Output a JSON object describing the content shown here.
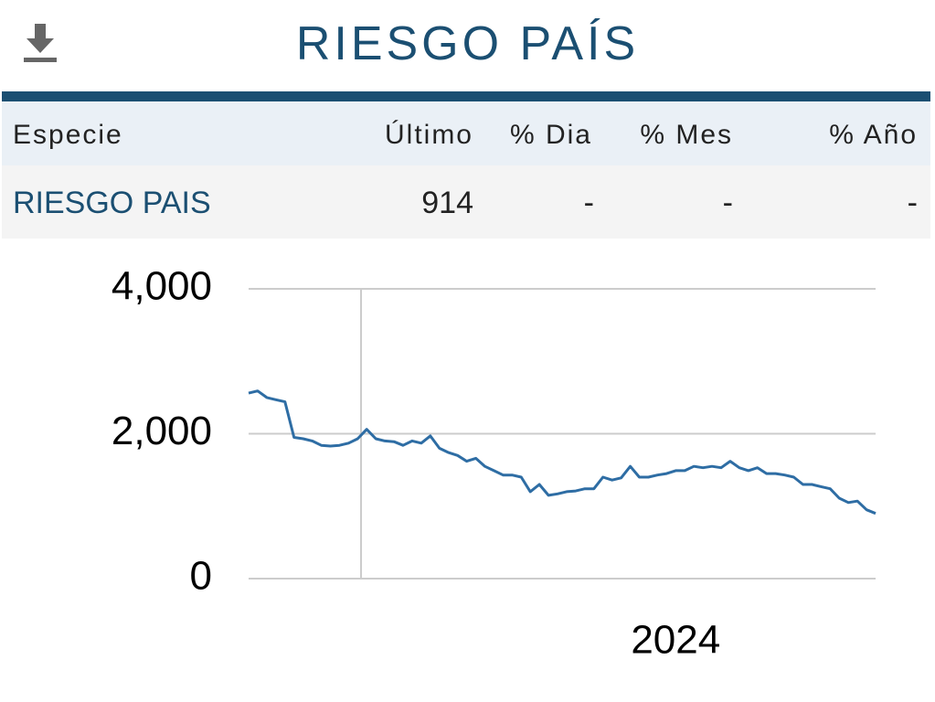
{
  "header": {
    "title": "RIESGO PAÍS"
  },
  "table": {
    "columns": [
      "Especie",
      "Último",
      "% Dia",
      "% Mes",
      "% Año"
    ],
    "rows": [
      [
        "RIESGO PAIS",
        "914",
        "-",
        "-",
        "-"
      ]
    ]
  },
  "chart_data": {
    "type": "line",
    "categories": [
      null,
      null,
      null,
      null,
      null,
      null,
      null,
      null,
      null,
      null,
      null,
      null,
      null,
      null,
      null,
      null,
      null,
      null,
      null,
      null,
      null,
      null,
      null,
      null,
      null,
      null,
      null,
      null,
      null,
      null,
      null,
      null,
      null,
      null,
      null,
      null,
      null,
      null,
      null,
      null,
      null,
      null,
      null,
      null,
      null,
      null,
      null,
      "2024",
      null,
      null,
      null,
      null,
      null,
      null,
      null,
      null,
      null,
      null,
      null,
      null,
      null,
      null,
      null,
      null,
      null,
      null,
      null,
      null,
      null,
      null
    ],
    "series": [
      {
        "color": "#2e6da4",
        "values": [
          2560,
          2590,
          2500,
          2470,
          2440,
          1950,
          1930,
          1900,
          1840,
          1830,
          1840,
          1870,
          1930,
          2060,
          1930,
          1900,
          1890,
          1840,
          1900,
          1870,
          1970,
          1800,
          1740,
          1700,
          1620,
          1660,
          1550,
          1490,
          1430,
          1430,
          1400,
          1200,
          1300,
          1150,
          1170,
          1200,
          1210,
          1240,
          1240,
          1400,
          1360,
          1390,
          1550,
          1400,
          1400,
          1430,
          1450,
          1490,
          1490,
          1550,
          1530,
          1550,
          1530,
          1620,
          1530,
          1490,
          1530,
          1450,
          1450,
          1430,
          1400,
          1300,
          1300,
          1270,
          1240,
          1110,
          1050,
          1070,
          950,
          900
        ]
      }
    ],
    "ylim": [
      0,
      4000
    ],
    "yticks": [
      0,
      {
        "value": 2000,
        "label": "2,000"
      },
      {
        "value": 4000,
        "label": "4,000"
      }
    ],
    "grid": true
  }
}
